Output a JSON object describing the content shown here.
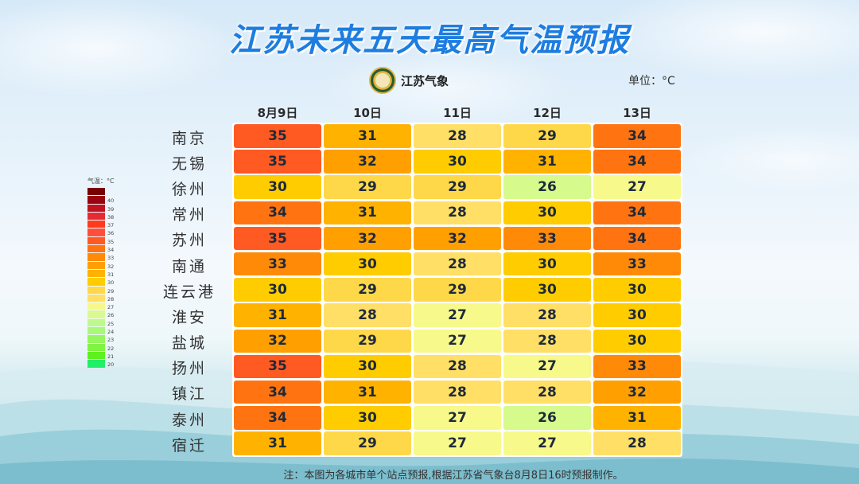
{
  "title": "江苏未来五天最高气温预报",
  "logo": {
    "icon": "jiangsu-meteorology-emblem",
    "text": "江苏气象"
  },
  "unit_label": "单位：°C",
  "legend": {
    "title": "气温：°C",
    "items": [
      {
        "label": "",
        "color": "#7a0000"
      },
      {
        "label": "40",
        "color": "#9a0410"
      },
      {
        "label": "39",
        "color": "#c0121f"
      },
      {
        "label": "38",
        "color": "#e42b34"
      },
      {
        "label": "37",
        "color": "#ff3a1e"
      },
      {
        "label": "36",
        "color": "#ff4f3a"
      },
      {
        "label": "35",
        "color": "#ff5a22"
      },
      {
        "label": "34",
        "color": "#ff7410"
      },
      {
        "label": "33",
        "color": "#ff8a08"
      },
      {
        "label": "32",
        "color": "#ffa000"
      },
      {
        "label": "31",
        "color": "#ffb300"
      },
      {
        "label": "30",
        "color": "#ffcc00"
      },
      {
        "label": "29",
        "color": "#ffd84a"
      },
      {
        "label": "28",
        "color": "#ffdf66"
      },
      {
        "label": "27",
        "color": "#f8f88a"
      },
      {
        "label": "26",
        "color": "#d8fa8e"
      },
      {
        "label": "25",
        "color": "#bdf98c"
      },
      {
        "label": "24",
        "color": "#a8f87a"
      },
      {
        "label": "23",
        "color": "#96f660"
      },
      {
        "label": "22",
        "color": "#7ef444"
      },
      {
        "label": "21",
        "color": "#5ef020"
      },
      {
        "label": "20",
        "color": "#22ee6a"
      }
    ]
  },
  "temp_colors": {
    "26": "#d6fa8c",
    "27": "#f7f98a",
    "28": "#ffdf66",
    "29": "#ffd84a",
    "30": "#ffcc00",
    "31": "#ffb300",
    "32": "#ffa000",
    "33": "#ff8a08",
    "34": "#ff7410",
    "35": "#ff5a22"
  },
  "footnote": "注：本图为各城市单个站点预报,根据江苏省气象台8月8日16时预报制作。",
  "chart_data": {
    "type": "heatmap",
    "title": "江苏未来五天最高气温预报",
    "unit": "°C",
    "columns": [
      "8月9日",
      "10日",
      "11日",
      "12日",
      "13日"
    ],
    "rows": [
      "南京",
      "无锡",
      "徐州",
      "常州",
      "苏州",
      "南通",
      "连云港",
      "淮安",
      "盐城",
      "扬州",
      "镇江",
      "泰州",
      "宿迁"
    ],
    "values": [
      [
        35,
        31,
        28,
        29,
        34
      ],
      [
        35,
        32,
        30,
        31,
        34
      ],
      [
        30,
        29,
        29,
        26,
        27
      ],
      [
        34,
        31,
        28,
        30,
        34
      ],
      [
        35,
        32,
        32,
        33,
        34
      ],
      [
        33,
        30,
        28,
        30,
        33
      ],
      [
        30,
        29,
        29,
        30,
        30
      ],
      [
        31,
        28,
        27,
        28,
        30
      ],
      [
        32,
        29,
        27,
        28,
        30
      ],
      [
        35,
        30,
        28,
        27,
        33
      ],
      [
        34,
        31,
        28,
        28,
        32
      ],
      [
        34,
        30,
        27,
        26,
        31
      ],
      [
        31,
        29,
        27,
        27,
        28
      ]
    ],
    "colorscale_range": [
      20,
      40
    ],
    "legend_position": "left"
  }
}
